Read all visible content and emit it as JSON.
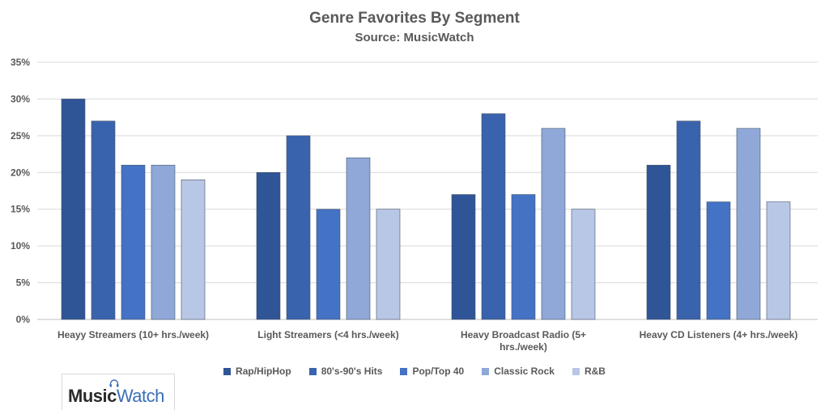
{
  "title": "Genre Favorites By Segment",
  "subtitle": "Source: MusicWatch",
  "logo": {
    "part1": "Music",
    "part2": "Watch"
  },
  "chart_data": {
    "type": "bar",
    "title": "Genre Favorites By Segment",
    "subtitle": "Source: MusicWatch",
    "xlabel": "",
    "ylabel": "",
    "ylim": [
      0,
      35
    ],
    "yticks": [
      0,
      5,
      10,
      15,
      20,
      25,
      30,
      35
    ],
    "ytick_labels": [
      "0%",
      "5%",
      "10%",
      "15%",
      "20%",
      "25%",
      "30%",
      "35%"
    ],
    "grid": true,
    "legend": "bottom",
    "categories": [
      "Heayy Streamers (10+ hrs./week)",
      "Light Streamers (<4 hrs./week)",
      "Heavy Broadcast Radio (5+ hrs./week)",
      "Heavy CD Listeners (4+ hrs./week)"
    ],
    "category_lines": [
      [
        "Heayy Streamers (10+ hrs./week)"
      ],
      [
        "Light Streamers (<4 hrs./week)"
      ],
      [
        "Heavy Broadcast Radio (5+",
        "hrs./week)"
      ],
      [
        "Heavy CD Listeners (4+ hrs./week)"
      ]
    ],
    "series": [
      {
        "name": "Rap/HipHop",
        "color": "#2f5597",
        "values": [
          30,
          20,
          17,
          21
        ]
      },
      {
        "name": "80's-90's Hits",
        "color": "#3a63ad",
        "values": [
          27,
          25,
          28,
          27
        ]
      },
      {
        "name": "Pop/Top 40",
        "color": "#4472c4",
        "values": [
          21,
          15,
          17,
          16
        ]
      },
      {
        "name": "Classic Rock",
        "color": "#8fa8d8",
        "values": [
          21,
          22,
          26,
          26
        ]
      },
      {
        "name": "R&B",
        "color": "#b9c7e6",
        "values": [
          19,
          15,
          15,
          16
        ]
      }
    ]
  }
}
